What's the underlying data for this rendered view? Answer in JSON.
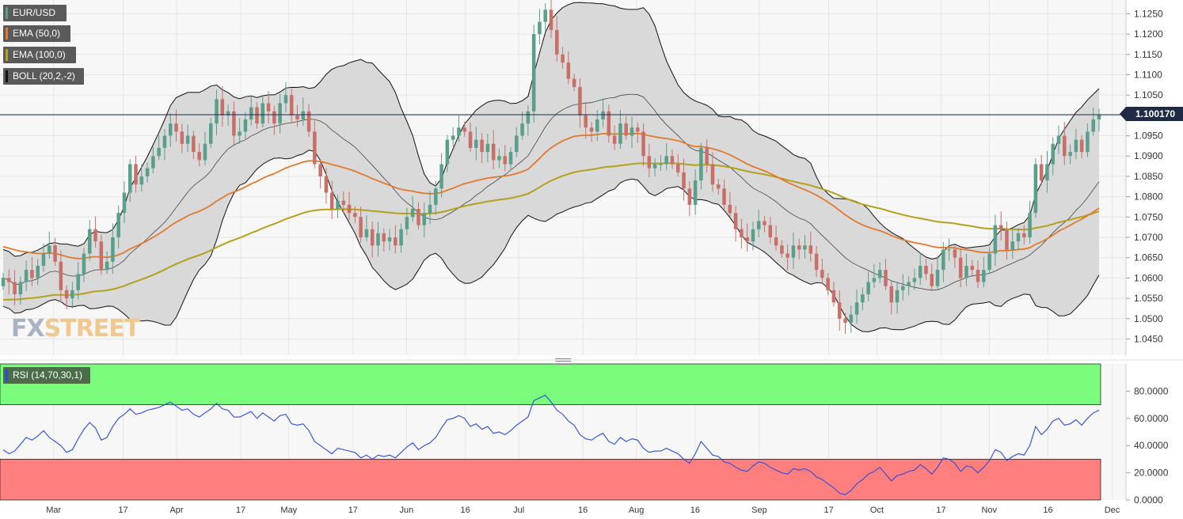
{
  "legends": {
    "pair": "EUR/USD",
    "ema50": "EMA (50,0)",
    "ema100": "EMA (100,0)",
    "boll": "BOLL (20,2,-2)",
    "rsi": "RSI (14,70,30,1)"
  },
  "last_price_label": "1.100170",
  "watermark": {
    "fx": "FX",
    "street": "STREET"
  },
  "colors": {
    "bull": "#5a9e8c",
    "bear": "#c87068",
    "ema50": "#e07a2e",
    "ema100": "#b3a11e",
    "boll_fill": "#d9d9d9",
    "rsi_line": "#2b4bd8",
    "overbought_fill": "#7cfc7c",
    "oversold_fill": "#ff7f7f",
    "last_price": "#1f2a44"
  },
  "chart_data": [
    {
      "type": "candlestick",
      "symbol": "EUR/USD",
      "x_labels": [
        "Mar",
        "17",
        "Apr",
        "17",
        "May",
        "17",
        "Jun",
        "16",
        "Jul",
        "16",
        "Aug",
        "16",
        "Sep",
        "17",
        "Oct",
        "17",
        "Nov",
        "16",
        "Dec"
      ],
      "y_ticks": [
        "1.1250",
        "1.1200",
        "1.1150",
        "1.1100",
        "1.1050",
        "1.1000",
        "1.0950",
        "1.0900",
        "1.0850",
        "1.0800",
        "1.0750",
        "1.0700",
        "1.0650",
        "1.0600",
        "1.0550",
        "1.0500",
        "1.0450"
      ],
      "ylim": [
        1.041,
        1.128
      ],
      "last_price": 1.10017,
      "close": [
        1.06,
        1.059,
        1.056,
        1.059,
        1.062,
        1.06,
        1.063,
        1.066,
        1.068,
        1.064,
        1.057,
        1.055,
        1.057,
        1.061,
        1.066,
        1.072,
        1.069,
        1.062,
        1.064,
        1.07,
        1.076,
        1.081,
        1.088,
        1.083,
        1.085,
        1.087,
        1.09,
        1.092,
        1.095,
        1.098,
        1.096,
        1.093,
        1.095,
        1.091,
        1.089,
        1.093,
        1.098,
        1.104,
        1.1,
        1.101,
        1.095,
        1.096,
        1.099,
        1.102,
        1.098,
        1.103,
        1.101,
        1.098,
        1.103,
        1.105,
        1.1,
        1.099,
        1.101,
        1.096,
        1.088,
        1.085,
        1.081,
        1.077,
        1.079,
        1.078,
        1.076,
        1.075,
        1.07,
        1.072,
        1.068,
        1.071,
        1.069,
        1.07,
        1.068,
        1.072,
        1.075,
        1.077,
        1.073,
        1.076,
        1.078,
        1.082,
        1.088,
        1.094,
        1.095,
        1.097,
        1.096,
        1.092,
        1.094,
        1.091,
        1.093,
        1.089,
        1.09,
        1.088,
        1.091,
        1.095,
        1.098,
        1.101,
        1.12,
        1.123,
        1.126,
        1.121,
        1.115,
        1.113,
        1.109,
        1.107,
        1.1,
        1.097,
        1.096,
        1.099,
        1.101,
        1.095,
        1.093,
        1.098,
        1.095,
        1.097,
        1.096,
        1.09,
        1.087,
        1.088,
        1.088,
        1.09,
        1.088,
        1.086,
        1.082,
        1.078,
        1.084,
        1.092,
        1.088,
        1.083,
        1.082,
        1.078,
        1.076,
        1.072,
        1.07,
        1.069,
        1.072,
        1.074,
        1.073,
        1.07,
        1.068,
        1.066,
        1.065,
        1.068,
        1.067,
        1.068,
        1.066,
        1.062,
        1.06,
        1.057,
        1.054,
        1.05,
        1.049,
        1.051,
        1.054,
        1.056,
        1.059,
        1.06,
        1.062,
        1.058,
        1.054,
        1.057,
        1.058,
        1.059,
        1.06,
        1.063,
        1.061,
        1.058,
        1.062,
        1.067,
        1.067,
        1.065,
        1.06,
        1.063,
        1.062,
        1.059,
        1.062,
        1.066,
        1.073,
        1.072,
        1.067,
        1.069,
        1.071,
        1.07,
        1.076,
        1.088,
        1.084,
        1.088,
        1.093,
        1.095,
        1.09,
        1.091,
        1.094,
        1.091,
        1.096,
        1.099,
        1.1002
      ],
      "ema_50": {
        "start": 1.068,
        "end": 1.076
      },
      "ema_100": {
        "start": 1.0545,
        "end": 1.0765
      },
      "bollinger": {
        "period": 20,
        "deviations": 2
      }
    },
    {
      "type": "line",
      "title": "RSI (14,70,30,1)",
      "y_ticks": [
        "80.0000",
        "60.0000",
        "40.0000",
        "20.0000",
        "0.0000"
      ],
      "ylim": [
        0,
        100
      ],
      "overbought": 70,
      "oversold": 30,
      "rsi_values": [
        37,
        34,
        36,
        41,
        46,
        44,
        47,
        51,
        46,
        43,
        40,
        35,
        37,
        45,
        52,
        57,
        53,
        44,
        46,
        54,
        60,
        63,
        67,
        63,
        64,
        66,
        67,
        68,
        70,
        72,
        69,
        66,
        67,
        63,
        61,
        64,
        67,
        71,
        67,
        66,
        61,
        61,
        63,
        65,
        60,
        64,
        61,
        58,
        62,
        63,
        56,
        55,
        56,
        51,
        43,
        40,
        37,
        34,
        38,
        37,
        36,
        35,
        31,
        33,
        30,
        33,
        32,
        33,
        31,
        35,
        39,
        42,
        37,
        40,
        42,
        46,
        53,
        59,
        60,
        62,
        60,
        54,
        56,
        52,
        54,
        49,
        50,
        48,
        51,
        55,
        58,
        61,
        73,
        75,
        77,
        72,
        66,
        63,
        58,
        55,
        48,
        45,
        44,
        47,
        49,
        43,
        41,
        46,
        43,
        45,
        44,
        38,
        35,
        36,
        36,
        38,
        36,
        34,
        30,
        27,
        34,
        43,
        38,
        33,
        32,
        28,
        27,
        24,
        22,
        21,
        25,
        28,
        27,
        24,
        22,
        20,
        19,
        23,
        22,
        23,
        21,
        17,
        15,
        12,
        9,
        5,
        4,
        7,
        12,
        15,
        19,
        21,
        24,
        19,
        14,
        18,
        19,
        21,
        22,
        26,
        23,
        19,
        24,
        31,
        30,
        27,
        21,
        25,
        24,
        20,
        24,
        29,
        37,
        35,
        29,
        32,
        34,
        33,
        40,
        54,
        48,
        52,
        58,
        60,
        55,
        56,
        59,
        55,
        60,
        64,
        66
      ]
    }
  ]
}
